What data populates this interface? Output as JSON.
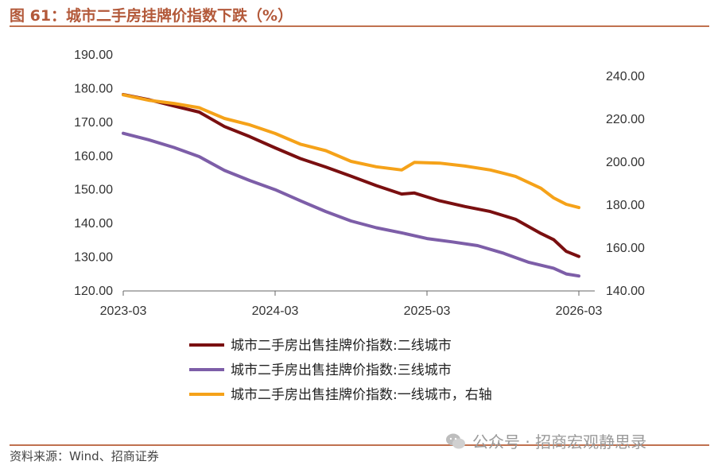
{
  "title": "图 61：城市二手房挂牌价指数下跌（%）",
  "source": "资料来源：Wind、招商证券",
  "watermark": "公众号 · 招商宏观静思录",
  "colors": {
    "accent": "#b3593a",
    "tier2": "#7a0f10",
    "tier3": "#7d5ea8",
    "tier1": "#f5a219"
  },
  "chart_data": {
    "type": "line",
    "x_ticks": [
      "2023-03",
      "2024-03",
      "2025-03",
      "2026-03"
    ],
    "y_left": {
      "ticks": [
        "120.00",
        "130.00",
        "140.00",
        "150.00",
        "160.00",
        "170.00",
        "180.00",
        "190.00"
      ],
      "range": [
        120,
        190
      ]
    },
    "y_right": {
      "ticks": [
        "140.00",
        "160.00",
        "180.00",
        "200.00",
        "220.00",
        "240.00"
      ],
      "range": [
        140,
        250
      ]
    },
    "series": [
      {
        "name": "城市二手房出售挂牌价指数:二线城市",
        "axis": "left",
        "color": "#7a0f10",
        "points": [
          [
            "2023-03",
            178.0
          ],
          [
            "2023-05",
            176.5
          ],
          [
            "2023-07",
            174.6
          ],
          [
            "2023-09",
            172.8
          ],
          [
            "2023-11",
            168.5
          ],
          [
            "2024-01",
            165.5
          ],
          [
            "2024-03",
            162.2
          ],
          [
            "2024-05",
            159.0
          ],
          [
            "2024-07",
            156.5
          ],
          [
            "2024-09",
            153.8
          ],
          [
            "2024-11",
            151.0
          ],
          [
            "2025-01",
            148.5
          ],
          [
            "2025-02",
            148.8
          ],
          [
            "2025-04",
            146.5
          ],
          [
            "2025-06",
            144.8
          ],
          [
            "2025-08",
            143.3
          ],
          [
            "2025-10",
            141.0
          ],
          [
            "2025-12",
            136.8
          ],
          [
            "2026-01",
            135.0
          ],
          [
            "2026-02",
            131.5
          ],
          [
            "2026-03",
            130.0
          ]
        ]
      },
      {
        "name": "城市二手房出售挂牌价指数:三线城市",
        "axis": "left",
        "color": "#7d5ea8",
        "points": [
          [
            "2023-03",
            166.5
          ],
          [
            "2023-05",
            164.6
          ],
          [
            "2023-07",
            162.3
          ],
          [
            "2023-09",
            159.6
          ],
          [
            "2023-11",
            155.5
          ],
          [
            "2024-01",
            152.5
          ],
          [
            "2024-03",
            149.8
          ],
          [
            "2024-05",
            146.5
          ],
          [
            "2024-07",
            143.3
          ],
          [
            "2024-09",
            140.5
          ],
          [
            "2024-11",
            138.5
          ],
          [
            "2025-01",
            137.0
          ],
          [
            "2025-03",
            135.3
          ],
          [
            "2025-05",
            134.3
          ],
          [
            "2025-07",
            133.2
          ],
          [
            "2025-09",
            131.0
          ],
          [
            "2025-11",
            128.3
          ],
          [
            "2026-01",
            126.5
          ],
          [
            "2026-02",
            124.8
          ],
          [
            "2026-03",
            124.2
          ]
        ]
      },
      {
        "name": "城市二手房出售挂牌价指数:一线城市，右轴",
        "axis": "right",
        "color": "#f5a219",
        "points": [
          [
            "2023-03",
            231.0
          ],
          [
            "2023-05",
            228.5
          ],
          [
            "2023-07",
            227.0
          ],
          [
            "2023-09",
            225.0
          ],
          [
            "2023-11",
            220.0
          ],
          [
            "2024-01",
            217.0
          ],
          [
            "2024-03",
            213.0
          ],
          [
            "2024-05",
            208.0
          ],
          [
            "2024-07",
            205.0
          ],
          [
            "2024-09",
            200.0
          ],
          [
            "2024-11",
            197.5
          ],
          [
            "2025-01",
            196.0
          ],
          [
            "2025-02",
            199.5
          ],
          [
            "2025-04",
            199.2
          ],
          [
            "2025-06",
            197.8
          ],
          [
            "2025-08",
            196.0
          ],
          [
            "2025-10",
            193.0
          ],
          [
            "2025-12",
            187.5
          ],
          [
            "2026-01",
            183.0
          ],
          [
            "2026-02",
            180.0
          ],
          [
            "2026-03",
            178.5
          ]
        ]
      }
    ]
  }
}
